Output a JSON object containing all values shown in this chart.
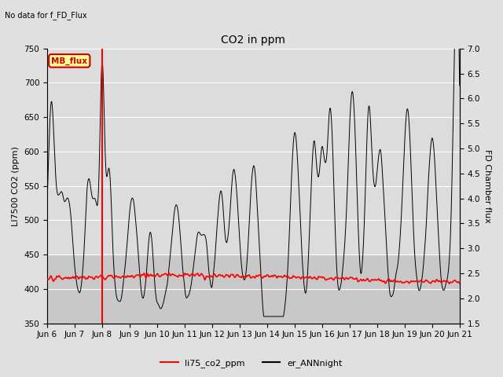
{
  "title": "CO2 in ppm",
  "top_left_text": "No data for f_FD_Flux",
  "left_ylabel": "LI7500 CO2 (ppm)",
  "right_ylabel": "FD Chamber flux",
  "ylim_left": [
    350,
    750
  ],
  "ylim_right": [
    1.5,
    7.0
  ],
  "yticks_left": [
    350,
    400,
    450,
    500,
    550,
    600,
    650,
    700,
    750
  ],
  "yticks_right": [
    1.5,
    2.0,
    2.5,
    3.0,
    3.5,
    4.0,
    4.5,
    5.0,
    5.5,
    6.0,
    6.5,
    7.0
  ],
  "xlabel_ticks": [
    "Jun 6",
    "Jun 7",
    "Jun 8",
    "Jun 9",
    "Jun 10",
    "Jun 11",
    "Jun 12",
    "Jun 13",
    "Jun 14",
    "Jun 15",
    "Jun 16",
    "Jun 17",
    "Jun 18",
    "Jun 19",
    "Jun 20",
    "Jun 21"
  ],
  "legend_entries": [
    "li75_co2_ppm",
    "er_ANNnight"
  ],
  "annotation_box_text": "MB_flux",
  "annotation_box_color": "#FFFF99",
  "annotation_box_edge": "#CC0000",
  "background_color": "#E0E0E0",
  "plot_bg_color_top": "#DCDCDC",
  "plot_bg_color_bottom": "#C8C8C8",
  "red_line_x": 2.0,
  "title_fontsize": 10,
  "axis_fontsize": 8,
  "tick_fontsize": 7.5,
  "figsize": [
    6.4,
    4.8
  ],
  "dpi": 100
}
